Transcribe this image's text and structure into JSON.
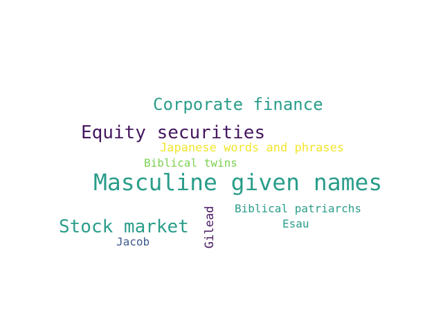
{
  "words": [
    {
      "text": "Masculine given names",
      "color": "#2a9d8a"
    },
    {
      "text": "Corporate finance",
      "color": "#2a9d8a"
    },
    {
      "text": "Equity securities",
      "color": "#46175f"
    },
    {
      "text": "Stock market",
      "color": "#2a9d8a"
    },
    {
      "text": "Japanese words and phrases",
      "color": "#f2e52b"
    },
    {
      "text": "Biblical patriarchs",
      "color": "#2a9d8a"
    },
    {
      "text": "Biblical twins",
      "color": "#7ad151"
    },
    {
      "text": "Esau",
      "color": "#2a9d8a"
    },
    {
      "text": "Jacob",
      "color": "#3b5a8c"
    },
    {
      "text": "Gilead",
      "color": "#46175f"
    }
  ]
}
